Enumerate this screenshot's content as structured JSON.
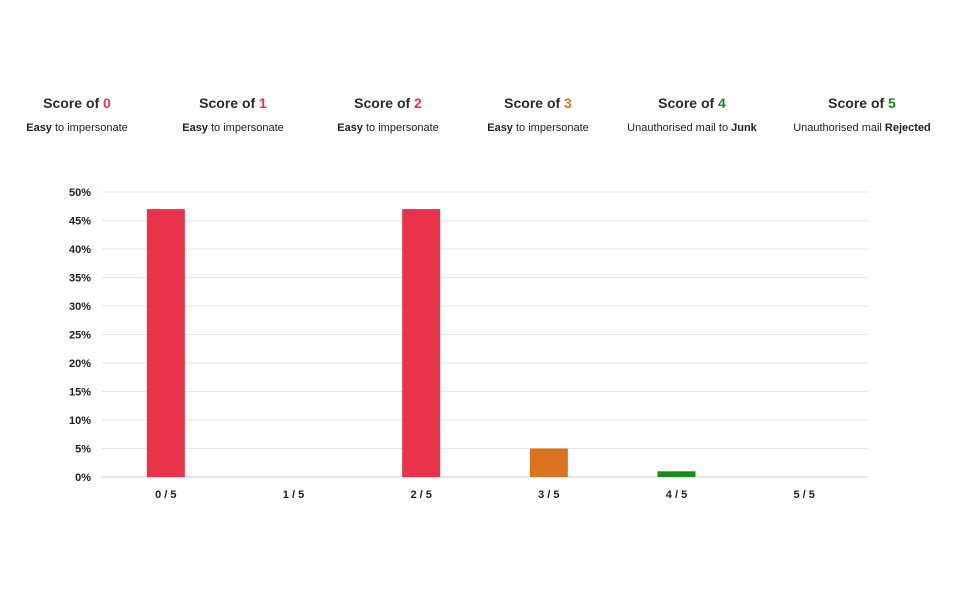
{
  "header": {
    "scores": [
      {
        "prefix": "Score of ",
        "number": "0",
        "color": "#e8334a",
        "desc_parts": [
          {
            "text": "Easy",
            "bold": true
          },
          {
            "text": " to impersonate",
            "bold": false
          }
        ]
      },
      {
        "prefix": "Score of ",
        "number": "1",
        "color": "#e8334a",
        "desc_parts": [
          {
            "text": "Easy",
            "bold": true
          },
          {
            "text": " to impersonate",
            "bold": false
          }
        ]
      },
      {
        "prefix": "Score of ",
        "number": "2",
        "color": "#e8334a",
        "desc_parts": [
          {
            "text": "Easy",
            "bold": true
          },
          {
            "text": " to impersonate",
            "bold": false
          }
        ]
      },
      {
        "prefix": "Score of ",
        "number": "3",
        "color": "#d9731f",
        "desc_parts": [
          {
            "text": "Easy",
            "bold": true
          },
          {
            "text": " to impersonate",
            "bold": false
          }
        ]
      },
      {
        "prefix": "Score of ",
        "number": "4",
        "color": "#1a8a1a",
        "desc_parts": [
          {
            "text": "Unauthorised mail to ",
            "bold": false
          },
          {
            "text": "Junk",
            "bold": true
          }
        ]
      },
      {
        "prefix": "Score of ",
        "number": "5",
        "color": "#1a8a1a",
        "desc_parts": [
          {
            "text": "Unauthorised mail ",
            "bold": false
          },
          {
            "text": "Rejected",
            "bold": true
          }
        ]
      }
    ]
  },
  "chart_data": {
    "type": "bar",
    "title": "",
    "xlabel": "",
    "ylabel": "",
    "categories": [
      "0 / 5",
      "1 / 5",
      "2 / 5",
      "3 / 5",
      "4 / 5",
      "5 / 5"
    ],
    "values": [
      47,
      0,
      47,
      5,
      1,
      0
    ],
    "bar_colors": [
      "#e8334a",
      "#e8334a",
      "#e8334a",
      "#d9731f",
      "#1a8a1a",
      "#1a8a1a"
    ],
    "ylim": [
      0,
      50
    ],
    "yticks": [
      0,
      5,
      10,
      15,
      20,
      25,
      30,
      35,
      40,
      45,
      50
    ],
    "ytick_labels": [
      "0%",
      "5%",
      "10%",
      "15%",
      "20%",
      "25%",
      "30%",
      "35%",
      "40%",
      "45%",
      "50%"
    ],
    "grid": true,
    "legend": "none"
  }
}
